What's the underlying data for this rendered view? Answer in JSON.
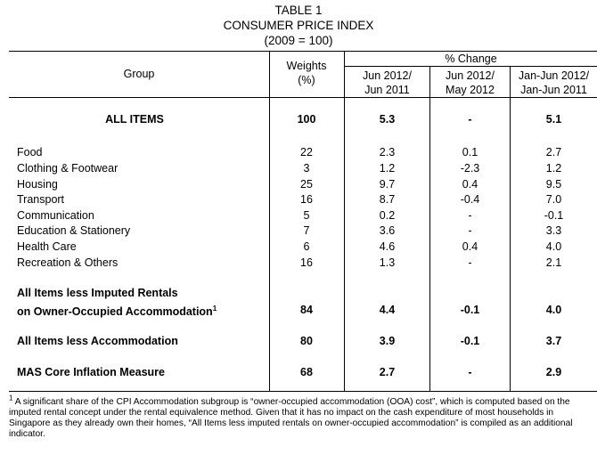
{
  "header": {
    "table_label": "TABLE 1",
    "title": "CONSUMER PRICE INDEX",
    "base": "(2009 = 100)"
  },
  "columns": {
    "group": "Group",
    "weights_line1": "Weights",
    "weights_line2": "(%)",
    "pct_change": "% Change",
    "c1_line1": "Jun 2012/",
    "c1_line2": "Jun 2011",
    "c2_line1": "Jun 2012/",
    "c2_line2": "May 2012",
    "c3_line1": "Jan-Jun 2012/",
    "c3_line2": "Jan-Jun 2011"
  },
  "all_items": {
    "label": "ALL ITEMS",
    "weight": "100",
    "yoy": "5.3",
    "mom": "-",
    "ytd": "5.1"
  },
  "groups": [
    {
      "label": "Food",
      "weight": "22",
      "yoy": "2.3",
      "mom": "0.1",
      "ytd": "2.7"
    },
    {
      "label": "Clothing & Footwear",
      "weight": "3",
      "yoy": "1.2",
      "mom": "-2.3",
      "ytd": "1.2"
    },
    {
      "label": "Housing",
      "weight": "25",
      "yoy": "9.7",
      "mom": "0.4",
      "ytd": "9.5"
    },
    {
      "label": "Transport",
      "weight": "16",
      "yoy": "8.7",
      "mom": "-0.4",
      "ytd": "7.0"
    },
    {
      "label": "Communication",
      "weight": "5",
      "yoy": "0.2",
      "mom": "-",
      "ytd": "-0.1"
    },
    {
      "label": "Education & Stationery",
      "weight": "7",
      "yoy": "3.6",
      "mom": "-",
      "ytd": "3.3"
    },
    {
      "label": "Health Care",
      "weight": "6",
      "yoy": "4.6",
      "mom": "0.4",
      "ytd": "4.0"
    },
    {
      "label": "Recreation & Others",
      "weight": "16",
      "yoy": "1.3",
      "mom": "-",
      "ytd": "2.1"
    }
  ],
  "less_imputed": {
    "label_line1": "All Items less Imputed Rentals",
    "label_line2": "on Owner-Occupied Accommodation",
    "note_mark": "1",
    "weight": "84",
    "yoy": "4.4",
    "mom": "-0.1",
    "ytd": "4.0"
  },
  "less_accommodation": {
    "label": "All Items less Accommodation",
    "weight": "80",
    "yoy": "3.9",
    "mom": "-0.1",
    "ytd": "3.7"
  },
  "mas_core": {
    "label": "MAS Core Inflation Measure",
    "weight": "68",
    "yoy": "2.7",
    "mom": "-",
    "ytd": "2.9"
  },
  "footnote": {
    "mark": "1",
    "text": " A significant share of the CPI Accommodation subgroup is “owner-occupied accommodation (OOA) cost”, which is computed based on the imputed rental concept under the rental equivalence method. Given that it has no impact on the cash expenditure of most households in Singapore as they already own their homes, “All Items less imputed rentals on owner-occupied accommodation” is compiled as an additional indicator."
  }
}
